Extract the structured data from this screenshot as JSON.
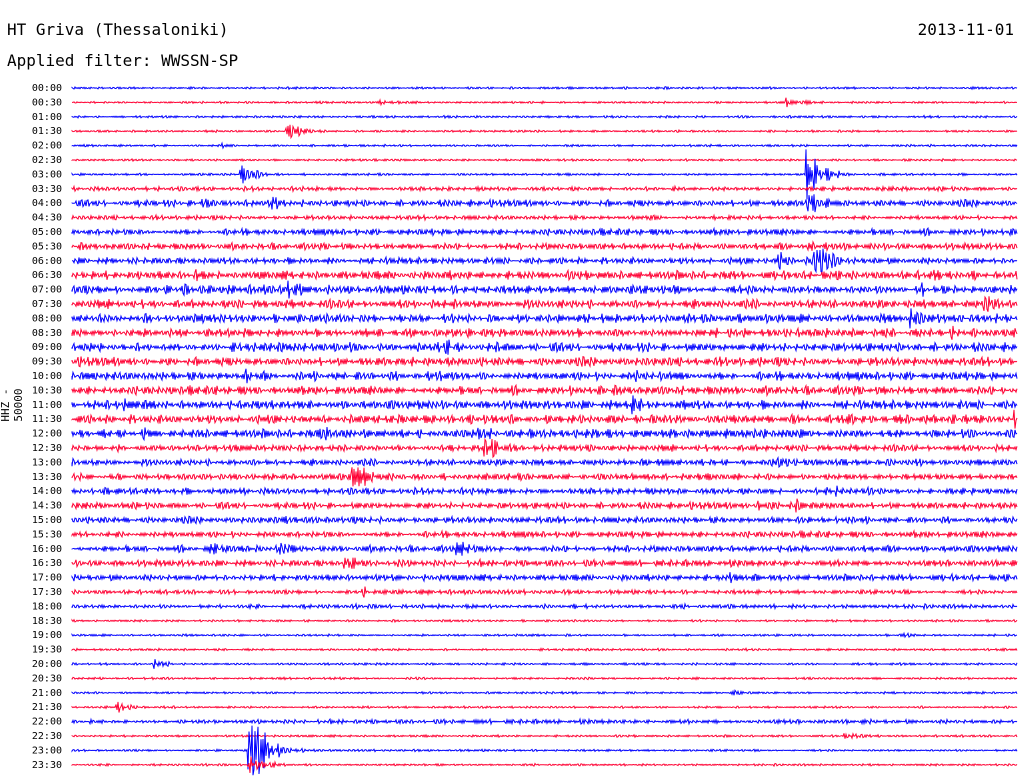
{
  "header": {
    "title": "HT Griva (Thessaloniki)",
    "filter": "Applied filter: WWSSN-SP",
    "date": "2013-11-01"
  },
  "colors": {
    "blue": "#0000ff",
    "red": "#ff0033"
  },
  "chart_data": {
    "type": "line",
    "ylabel": "HHZ - 50000",
    "ticks": [
      "00:00",
      "00:30",
      "01:00",
      "01:30",
      "02:00",
      "02:30",
      "03:00",
      "03:30",
      "04:00",
      "04:30",
      "05:00",
      "05:30",
      "06:00",
      "06:30",
      "07:00",
      "07:30",
      "08:00",
      "08:30",
      "09:00",
      "09:30",
      "10:00",
      "10:30",
      "11:00",
      "11:30",
      "12:00",
      "12:30",
      "13:00",
      "13:30",
      "14:00",
      "14:30",
      "15:00",
      "15:30",
      "16:00",
      "16:30",
      "17:00",
      "17:30",
      "18:00",
      "18:30",
      "19:00",
      "19:30",
      "20:00",
      "20:30",
      "21:00",
      "21:30",
      "22:00",
      "22:30",
      "23:00",
      "23:30"
    ],
    "trace_colors": [
      "blue",
      "red"
    ],
    "noise_levels": [
      1,
      1,
      1,
      1,
      1,
      1,
      1,
      2,
      3,
      2,
      3,
      3,
      3,
      4,
      4,
      4,
      4,
      4,
      4,
      4,
      4,
      4,
      4,
      4,
      4,
      3,
      3,
      3,
      3,
      3,
      3,
      3,
      3,
      3,
      3,
      2,
      2,
      1,
      1,
      1,
      1,
      1,
      1,
      1,
      2,
      1,
      1,
      1
    ],
    "events": [
      {
        "row": 1,
        "t": 0.33,
        "amp": 4
      },
      {
        "row": 1,
        "t": 0.76,
        "amp": 6
      },
      {
        "row": 2,
        "t": 0.52,
        "amp": 2
      },
      {
        "row": 3,
        "t": 0.23,
        "amp": 12
      },
      {
        "row": 4,
        "t": 0.16,
        "amp": 3
      },
      {
        "row": 6,
        "t": 0.18,
        "amp": 10
      },
      {
        "row": 6,
        "t": 0.78,
        "amp": 30
      },
      {
        "row": 8,
        "t": 0.14,
        "amp": 6
      },
      {
        "row": 8,
        "t": 0.21,
        "amp": 12
      },
      {
        "row": 8,
        "t": 0.78,
        "amp": 16
      },
      {
        "row": 9,
        "t": 0.61,
        "amp": 4
      },
      {
        "row": 9,
        "t": 0.68,
        "amp": 6
      },
      {
        "row": 11,
        "t": 0.78,
        "amp": 10
      },
      {
        "row": 12,
        "t": 0.75,
        "amp": 14
      },
      {
        "row": 12,
        "t": 0.79,
        "amp": 20
      },
      {
        "row": 13,
        "t": 0.13,
        "amp": 8
      },
      {
        "row": 13,
        "t": 0.91,
        "amp": 8
      },
      {
        "row": 13,
        "t": 1.0,
        "amp": 14
      },
      {
        "row": 14,
        "t": 0.12,
        "amp": 10
      },
      {
        "row": 14,
        "t": 0.23,
        "amp": 14
      },
      {
        "row": 14,
        "t": 0.9,
        "amp": 8
      },
      {
        "row": 15,
        "t": 0.97,
        "amp": 12
      },
      {
        "row": 16,
        "t": 0.89,
        "amp": 12
      },
      {
        "row": 17,
        "t": 0.17,
        "amp": 6
      },
      {
        "row": 17,
        "t": 0.93,
        "amp": 10
      },
      {
        "row": 18,
        "t": 0.4,
        "amp": 10
      },
      {
        "row": 20,
        "t": 0.18,
        "amp": 12
      },
      {
        "row": 20,
        "t": 0.38,
        "amp": 16
      },
      {
        "row": 20,
        "t": 0.6,
        "amp": 10
      },
      {
        "row": 22,
        "t": 0.05,
        "amp": 14
      },
      {
        "row": 22,
        "t": 0.2,
        "amp": 10
      },
      {
        "row": 22,
        "t": 0.59,
        "amp": 16
      },
      {
        "row": 23,
        "t": 1.0,
        "amp": 10
      },
      {
        "row": 24,
        "t": 0.08,
        "amp": 10
      },
      {
        "row": 24,
        "t": 0.26,
        "amp": 16
      },
      {
        "row": 24,
        "t": 0.43,
        "amp": 14
      },
      {
        "row": 25,
        "t": 0.44,
        "amp": 20
      },
      {
        "row": 26,
        "t": 0.75,
        "amp": 8
      },
      {
        "row": 27,
        "t": 0.3,
        "amp": 18
      },
      {
        "row": 28,
        "t": 0.8,
        "amp": 10
      },
      {
        "row": 29,
        "t": 0.73,
        "amp": 10
      },
      {
        "row": 29,
        "t": 0.77,
        "amp": 8
      },
      {
        "row": 30,
        "t": 0.23,
        "amp": 6
      },
      {
        "row": 32,
        "t": 0.15,
        "amp": 10
      },
      {
        "row": 32,
        "t": 0.22,
        "amp": 12
      },
      {
        "row": 32,
        "t": 0.41,
        "amp": 14
      },
      {
        "row": 33,
        "t": 0.29,
        "amp": 14
      },
      {
        "row": 34,
        "t": 0.7,
        "amp": 6
      },
      {
        "row": 35,
        "t": 0.31,
        "amp": 6
      },
      {
        "row": 36,
        "t": 0.5,
        "amp": 4
      },
      {
        "row": 38,
        "t": 0.88,
        "amp": 4
      },
      {
        "row": 40,
        "t": 0.09,
        "amp": 6
      },
      {
        "row": 42,
        "t": 0.7,
        "amp": 4
      },
      {
        "row": 43,
        "t": 0.05,
        "amp": 6
      },
      {
        "row": 45,
        "t": 0.82,
        "amp": 6
      },
      {
        "row": 46,
        "t": 0.19,
        "amp": 40
      },
      {
        "row": 47,
        "t": 0.19,
        "amp": 12
      }
    ]
  }
}
